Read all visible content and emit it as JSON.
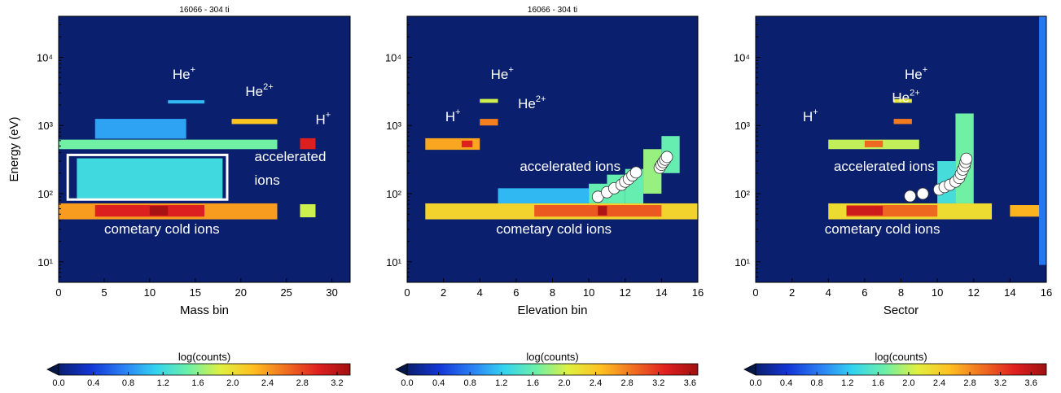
{
  "colors": {
    "background_low": "#0a1f6e",
    "colormap": [
      "#0a1f6e",
      "#1336d6",
      "#2a7ff5",
      "#33d3f0",
      "#6cf0a8",
      "#e0f040",
      "#ffc020",
      "#f07020",
      "#e02020",
      "#a01010"
    ],
    "annotation": "#ffffff"
  },
  "chart_data": [
    {
      "type": "heatmap",
      "title": "16066 - 304 ti",
      "xlabel": "Mass bin",
      "ylabel": "Energy (eV)",
      "xlim": [
        0,
        32
      ],
      "ylim": [
        5,
        40000
      ],
      "yscale": "log",
      "xticks": [
        "0",
        "5",
        "10",
        "15",
        "20",
        "25",
        "30"
      ],
      "yticks": [
        "10¹",
        "10²",
        "10³",
        "10⁴"
      ],
      "colorbar": {
        "label": "log(counts)",
        "ticks": [
          "0.0",
          "0.4",
          "0.8",
          "1.2",
          "1.6",
          "2.0",
          "2.4",
          "2.8",
          "3.2"
        ],
        "max": 3.35
      },
      "cells": [
        {
          "x0": 0,
          "x1": 24,
          "e0": 42,
          "e1": 72,
          "v": 2.4
        },
        {
          "x0": 4,
          "x1": 16,
          "e0": 46,
          "e1": 68,
          "v": 3.0
        },
        {
          "x0": 10,
          "x1": 12,
          "e0": 48,
          "e1": 66,
          "v": 3.3
        },
        {
          "x0": 0,
          "x1": 24,
          "e0": 450,
          "e1": 620,
          "v": 1.5
        },
        {
          "x0": 2,
          "x1": 18,
          "e0": 85,
          "e1": 330,
          "v": 1.2
        },
        {
          "x0": 4,
          "x1": 14,
          "e0": 640,
          "e1": 1250,
          "v": 0.9
        },
        {
          "x0": 19,
          "x1": 24,
          "e0": 1050,
          "e1": 1250,
          "v": 2.2
        },
        {
          "x0": 12,
          "x1": 16,
          "e0": 2100,
          "e1": 2350,
          "v": 1.0
        },
        {
          "x0": 26.5,
          "x1": 28.2,
          "e0": 450,
          "e1": 650,
          "v": 3.0
        },
        {
          "x0": 26.5,
          "x1": 28.2,
          "e0": 45,
          "e1": 70,
          "v": 1.8
        }
      ],
      "box": {
        "x0": 1,
        "x1": 18.5,
        "e0": 82,
        "e1": 370
      },
      "annotations": [
        {
          "text": "He",
          "sup": "+",
          "x": 12.5,
          "e": 4800
        },
        {
          "text": "He",
          "sup": "2+",
          "x": 20.5,
          "e": 2700
        },
        {
          "text": "H",
          "sup": "+",
          "x": 28.2,
          "e": 1050
        },
        {
          "text": "accelerated",
          "sup": "",
          "x": 21.5,
          "e": 300
        },
        {
          "text": "ions",
          "sup": "",
          "x": 21.5,
          "e": 135
        },
        {
          "text": "cometary cold ions",
          "sup": "",
          "x": 5,
          "e": 26
        }
      ],
      "markers": []
    },
    {
      "type": "heatmap",
      "title": "16066 - 304 ti",
      "xlabel": "Elevation bin",
      "ylabel": "",
      "xlim": [
        0,
        16
      ],
      "ylim": [
        5,
        40000
      ],
      "yscale": "log",
      "xticks": [
        "0",
        "2",
        "4",
        "6",
        "8",
        "10",
        "12",
        "14",
        "16"
      ],
      "yticks": [
        "10¹",
        "10²",
        "10³",
        "10⁴"
      ],
      "colorbar": {
        "label": "log(counts)",
        "ticks": [
          "0.0",
          "0.4",
          "0.8",
          "1.2",
          "1.6",
          "2.0",
          "2.4",
          "2.8",
          "3.2",
          "3.6"
        ],
        "max": 3.7
      },
      "cells": [
        {
          "x0": 1,
          "x1": 16,
          "e0": 42,
          "e1": 72,
          "v": 2.3
        },
        {
          "x0": 7,
          "x1": 14,
          "e0": 46,
          "e1": 68,
          "v": 3.0
        },
        {
          "x0": 10.5,
          "x1": 11,
          "e0": 48,
          "e1": 66,
          "v": 3.6
        },
        {
          "x0": 1,
          "x1": 4,
          "e0": 440,
          "e1": 650,
          "v": 2.6
        },
        {
          "x0": 3,
          "x1": 3.6,
          "e0": 480,
          "e1": 600,
          "v": 3.3
        },
        {
          "x0": 4,
          "x1": 5,
          "e0": 1000,
          "e1": 1250,
          "v": 2.8
        },
        {
          "x0": 4,
          "x1": 5,
          "e0": 2150,
          "e1": 2450,
          "v": 2.0
        },
        {
          "x0": 5,
          "x1": 10,
          "e0": 72,
          "e1": 120,
          "v": 1.1
        },
        {
          "x0": 10,
          "x1": 11,
          "e0": 72,
          "e1": 140,
          "v": 1.6
        },
        {
          "x0": 11,
          "x1": 12,
          "e0": 72,
          "e1": 190,
          "v": 1.6
        },
        {
          "x0": 12,
          "x1": 13,
          "e0": 72,
          "e1": 230,
          "v": 1.6
        },
        {
          "x0": 13,
          "x1": 14,
          "e0": 100,
          "e1": 450,
          "v": 1.8
        },
        {
          "x0": 14,
          "x1": 15,
          "e0": 200,
          "e1": 700,
          "v": 1.6
        }
      ],
      "box": null,
      "annotations": [
        {
          "text": "He",
          "sup": "+",
          "x": 4.6,
          "e": 4800
        },
        {
          "text": "He",
          "sup": "2+",
          "x": 6.1,
          "e": 1800
        },
        {
          "text": "H",
          "sup": "+",
          "x": 2.1,
          "e": 1150
        },
        {
          "text": "accelerated ions",
          "sup": "",
          "x": 6.2,
          "e": 215
        },
        {
          "text": "cometary cold ions",
          "sup": "",
          "x": 4.9,
          "e": 26
        }
      ],
      "markers": [
        {
          "x": 10.5,
          "e": 90
        },
        {
          "x": 11,
          "e": 105
        },
        {
          "x": 11.4,
          "e": 120
        },
        {
          "x": 11.8,
          "e": 135
        },
        {
          "x": 12,
          "e": 150
        },
        {
          "x": 12.2,
          "e": 165
        },
        {
          "x": 12.4,
          "e": 185
        },
        {
          "x": 12.6,
          "e": 205
        },
        {
          "x": 13.9,
          "e": 240
        },
        {
          "x": 14,
          "e": 265
        },
        {
          "x": 14.1,
          "e": 290
        },
        {
          "x": 14.2,
          "e": 315
        },
        {
          "x": 14.3,
          "e": 345
        }
      ]
    },
    {
      "type": "heatmap",
      "title": "",
      "xlabel": "Sector",
      "ylabel": "",
      "xlim": [
        0,
        16
      ],
      "ylim": [
        5,
        40000
      ],
      "yscale": "log",
      "xticks": [
        "0",
        "2",
        "4",
        "6",
        "8",
        "10",
        "12",
        "14",
        "16"
      ],
      "yticks": [
        "10¹",
        "10²",
        "10³",
        "10⁴"
      ],
      "colorbar": {
        "label": "log(counts)",
        "ticks": [
          "0.0",
          "0.4",
          "0.8",
          "1.2",
          "1.6",
          "2.0",
          "2.4",
          "2.8",
          "3.2",
          "3.6"
        ],
        "max": 3.8
      },
      "cells": [
        {
          "x0": 4,
          "x1": 13,
          "e0": 42,
          "e1": 72,
          "v": 2.3
        },
        {
          "x0": 5,
          "x1": 10,
          "e0": 46,
          "e1": 68,
          "v": 3.0
        },
        {
          "x0": 5,
          "x1": 7,
          "e0": 48,
          "e1": 66,
          "v": 3.5
        },
        {
          "x0": 14,
          "x1": 16,
          "e0": 46,
          "e1": 68,
          "v": 2.6
        },
        {
          "x0": 4,
          "x1": 9,
          "e0": 450,
          "e1": 620,
          "v": 2.0
        },
        {
          "x0": 6,
          "x1": 7,
          "e0": 480,
          "e1": 600,
          "v": 3.0
        },
        {
          "x0": 7.6,
          "x1": 8.6,
          "e0": 1050,
          "e1": 1250,
          "v": 2.9
        },
        {
          "x0": 7.6,
          "x1": 8.6,
          "e0": 2150,
          "e1": 2450,
          "v": 2.2
        },
        {
          "x0": 10,
          "x1": 11,
          "e0": 72,
          "e1": 300,
          "v": 1.4
        },
        {
          "x0": 11,
          "x1": 12,
          "e0": 72,
          "e1": 1500,
          "v": 1.7
        },
        {
          "x0": 15.6,
          "x1": 16,
          "e0": 9,
          "e1": 40000,
          "v": 0.8
        }
      ],
      "box": null,
      "annotations": [
        {
          "text": "He",
          "sup": "+",
          "x": 8.2,
          "e": 4800
        },
        {
          "text": "He",
          "sup": "2+",
          "x": 7.5,
          "e": 2200
        },
        {
          "text": "H",
          "sup": "+",
          "x": 2.6,
          "e": 1150
        },
        {
          "text": "accelerated ions",
          "sup": "",
          "x": 4.3,
          "e": 215
        },
        {
          "text": "cometary cold ions",
          "sup": "",
          "x": 3.8,
          "e": 26
        }
      ],
      "markers": [
        {
          "x": 8.5,
          "e": 92
        },
        {
          "x": 9.2,
          "e": 100
        },
        {
          "x": 10.1,
          "e": 115
        },
        {
          "x": 10.4,
          "e": 125
        },
        {
          "x": 10.7,
          "e": 135
        },
        {
          "x": 11,
          "e": 150
        },
        {
          "x": 11.2,
          "e": 170
        },
        {
          "x": 11.3,
          "e": 195
        },
        {
          "x": 11.4,
          "e": 225
        },
        {
          "x": 11.5,
          "e": 255
        },
        {
          "x": 11.55,
          "e": 290
        },
        {
          "x": 11.6,
          "e": 325
        }
      ]
    }
  ]
}
